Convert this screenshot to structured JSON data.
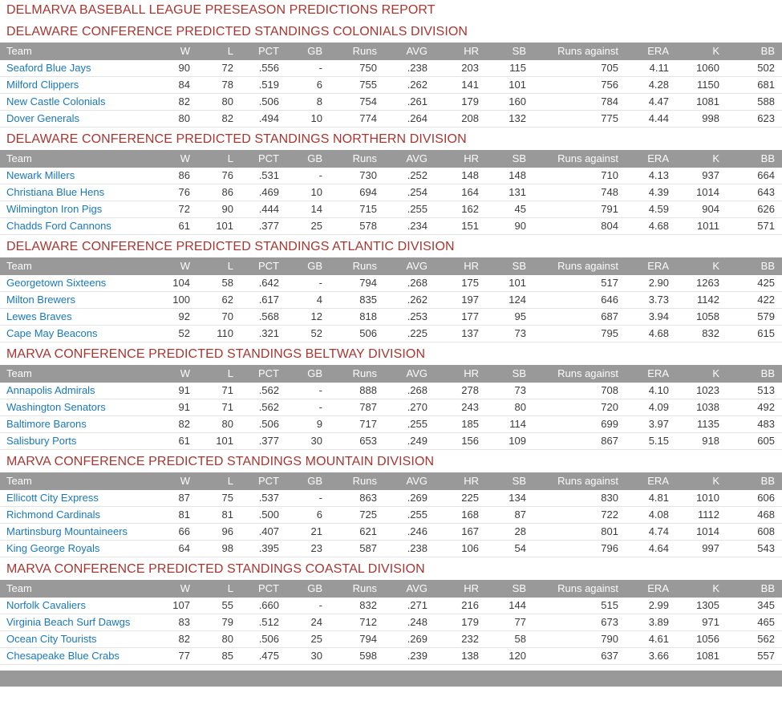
{
  "title": "DELMARVA BASEBALL LEAGUE PRESEASON PREDICTIONS REPORT",
  "columns": [
    "Team",
    "W",
    "L",
    "PCT",
    "GB",
    "Runs",
    "AVG",
    "HR",
    "SB",
    "Runs against",
    "ERA",
    "K",
    "BB"
  ],
  "colors": {
    "heading_red": "#AA3530",
    "link_blue": "#1878BE",
    "header_gray": "#999999",
    "header_text": "#FCFCFC",
    "data_text": "#3B3B3B",
    "row_border": "#E3E3E3"
  },
  "sections": [
    {
      "heading": "DELAWARE CONFERENCE PREDICTED STANDINGS COLONIALS DIVISION",
      "rows": [
        [
          "Seaford Blue Jays",
          "90",
          "72",
          ".556",
          "-",
          "750",
          ".238",
          "203",
          "115",
          "705",
          "4.11",
          "1060",
          "502"
        ],
        [
          "Milford Clippers",
          "84",
          "78",
          ".519",
          "6",
          "755",
          ".262",
          "141",
          "101",
          "756",
          "4.28",
          "1150",
          "681"
        ],
        [
          "New Castle Colonials",
          "82",
          "80",
          ".506",
          "8",
          "754",
          ".261",
          "179",
          "160",
          "784",
          "4.47",
          "1081",
          "588"
        ],
        [
          "Dover Generals",
          "80",
          "82",
          ".494",
          "10",
          "774",
          ".264",
          "208",
          "132",
          "775",
          "4.44",
          "998",
          "623"
        ]
      ]
    },
    {
      "heading": "DELAWARE CONFERENCE PREDICTED STANDINGS NORTHERN DIVISION",
      "rows": [
        [
          "Newark Millers",
          "86",
          "76",
          ".531",
          "-",
          "730",
          ".252",
          "148",
          "148",
          "710",
          "4.13",
          "937",
          "664"
        ],
        [
          "Christiana Blue Hens",
          "76",
          "86",
          ".469",
          "10",
          "694",
          ".254",
          "164",
          "131",
          "748",
          "4.39",
          "1014",
          "643"
        ],
        [
          "Wilmington Iron Pigs",
          "72",
          "90",
          ".444",
          "14",
          "715",
          ".255",
          "162",
          "45",
          "791",
          "4.59",
          "904",
          "626"
        ],
        [
          "Chadds Ford Cannons",
          "61",
          "101",
          ".377",
          "25",
          "578",
          ".234",
          "151",
          "90",
          "804",
          "4.68",
          "1011",
          "571"
        ]
      ]
    },
    {
      "heading": "DELAWARE CONFERENCE PREDICTED STANDINGS ATLANTIC DIVISION",
      "rows": [
        [
          "Georgetown Sixteens",
          "104",
          "58",
          ".642",
          "-",
          "794",
          ".268",
          "175",
          "101",
          "517",
          "2.90",
          "1263",
          "425"
        ],
        [
          "Milton Brewers",
          "100",
          "62",
          ".617",
          "4",
          "835",
          ".262",
          "197",
          "124",
          "646",
          "3.73",
          "1142",
          "422"
        ],
        [
          "Lewes Braves",
          "92",
          "70",
          ".568",
          "12",
          "818",
          ".253",
          "177",
          "95",
          "687",
          "3.94",
          "1058",
          "579"
        ],
        [
          "Cape May Beacons",
          "52",
          "110",
          ".321",
          "52",
          "506",
          ".225",
          "137",
          "73",
          "795",
          "4.68",
          "832",
          "615"
        ]
      ]
    },
    {
      "heading": "MARVA CONFERENCE PREDICTED STANDINGS BELTWAY DIVISION",
      "rows": [
        [
          "Annapolis Admirals",
          "91",
          "71",
          ".562",
          "-",
          "888",
          ".268",
          "278",
          "73",
          "708",
          "4.10",
          "1023",
          "513"
        ],
        [
          "Washington Senators",
          "91",
          "71",
          ".562",
          "-",
          "787",
          ".270",
          "243",
          "80",
          "720",
          "4.09",
          "1038",
          "492"
        ],
        [
          "Baltimore Barons",
          "82",
          "80",
          ".506",
          "9",
          "717",
          ".255",
          "185",
          "114",
          "699",
          "3.97",
          "1135",
          "483"
        ],
        [
          "Salisbury Ports",
          "61",
          "101",
          ".377",
          "30",
          "653",
          ".249",
          "156",
          "109",
          "867",
          "5.15",
          "918",
          "605"
        ]
      ]
    },
    {
      "heading": "MARVA CONFERENCE PREDICTED STANDINGS MOUNTAIN DIVISION",
      "rows": [
        [
          "Ellicott City Express",
          "87",
          "75",
          ".537",
          "-",
          "863",
          ".269",
          "225",
          "134",
          "830",
          "4.81",
          "1010",
          "606"
        ],
        [
          "Richmond Cardinals",
          "81",
          "81",
          ".500",
          "6",
          "725",
          ".255",
          "168",
          "87",
          "722",
          "4.08",
          "1112",
          "468"
        ],
        [
          "Martinsburg Mountaineers",
          "66",
          "96",
          ".407",
          "21",
          "621",
          ".246",
          "167",
          "28",
          "801",
          "4.74",
          "1014",
          "608"
        ],
        [
          "King George Royals",
          "64",
          "98",
          ".395",
          "23",
          "587",
          ".238",
          "106",
          "54",
          "796",
          "4.64",
          "997",
          "543"
        ]
      ]
    },
    {
      "heading": "MARVA CONFERENCE PREDICTED STANDINGS COASTAL DIVISION",
      "rows": [
        [
          "Norfolk Cavaliers",
          "107",
          "55",
          ".660",
          "-",
          "832",
          ".271",
          "216",
          "144",
          "515",
          "2.99",
          "1305",
          "345"
        ],
        [
          "Virginia Beach Surf Dawgs",
          "83",
          "79",
          ".512",
          "24",
          "712",
          ".248",
          "179",
          "77",
          "673",
          "3.89",
          "971",
          "465"
        ],
        [
          "Ocean City Tourists",
          "82",
          "80",
          ".506",
          "25",
          "794",
          ".269",
          "232",
          "58",
          "790",
          "4.61",
          "1056",
          "562"
        ],
        [
          "Chesapeake Blue Crabs",
          "77",
          "85",
          ".475",
          "30",
          "598",
          ".239",
          "138",
          "120",
          "637",
          "3.66",
          "1081",
          "557"
        ]
      ]
    }
  ]
}
